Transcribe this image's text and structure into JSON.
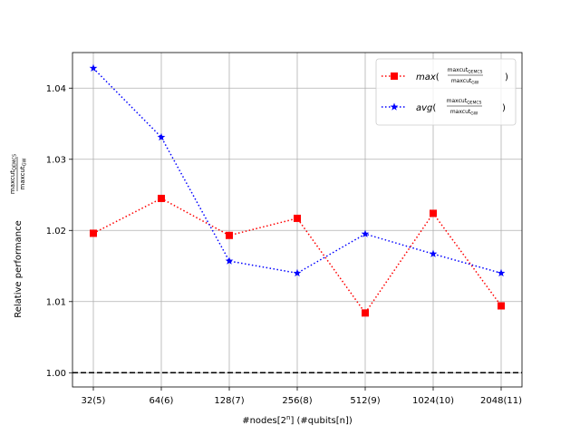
{
  "chart_data": {
    "type": "line",
    "title": "",
    "xlabel_main": "#nodes[2",
    "xlabel_sup": "n",
    "xlabel_rest": "] (#qubits[n])",
    "ylabel_prefix": "Relative performance",
    "ylabel_frac_num": "maxcut",
    "ylabel_frac_num_sub": "QEMCS",
    "ylabel_frac_den": "maxcut",
    "ylabel_frac_den_sub": "GW",
    "categories": [
      "32(5)",
      "64(6)",
      "128(7)",
      "256(8)",
      "512(9)",
      "1024(10)",
      "2048(11)"
    ],
    "y_ticks": [
      "1.00",
      "1.01",
      "1.02",
      "1.03",
      "1.04"
    ],
    "ylim": [
      0.998,
      1.045
    ],
    "grid": true,
    "reference_line": {
      "y": 1.0,
      "style": "dashed",
      "color": "#000000"
    },
    "legend_position": "top-right",
    "series": [
      {
        "name_fn": "max",
        "name_num": "maxcut",
        "name_num_sub": "QEMCS",
        "name_den": "maxcut",
        "name_den_sub": "GW",
        "color": "#ff0000",
        "marker": "square",
        "line_style": "dotted",
        "values": [
          1.0196,
          1.0245,
          1.0193,
          1.0217,
          1.0084,
          1.0224,
          1.0094
        ]
      },
      {
        "name_fn": "avg",
        "name_num": "maxcut",
        "name_num_sub": "QEMCS",
        "name_den": "maxcut",
        "name_den_sub": "GW",
        "color": "#0000ff",
        "marker": "star",
        "line_style": "dotted",
        "values": [
          1.0428,
          1.0331,
          1.0157,
          1.014,
          1.0195,
          1.0167,
          1.014
        ]
      }
    ]
  }
}
